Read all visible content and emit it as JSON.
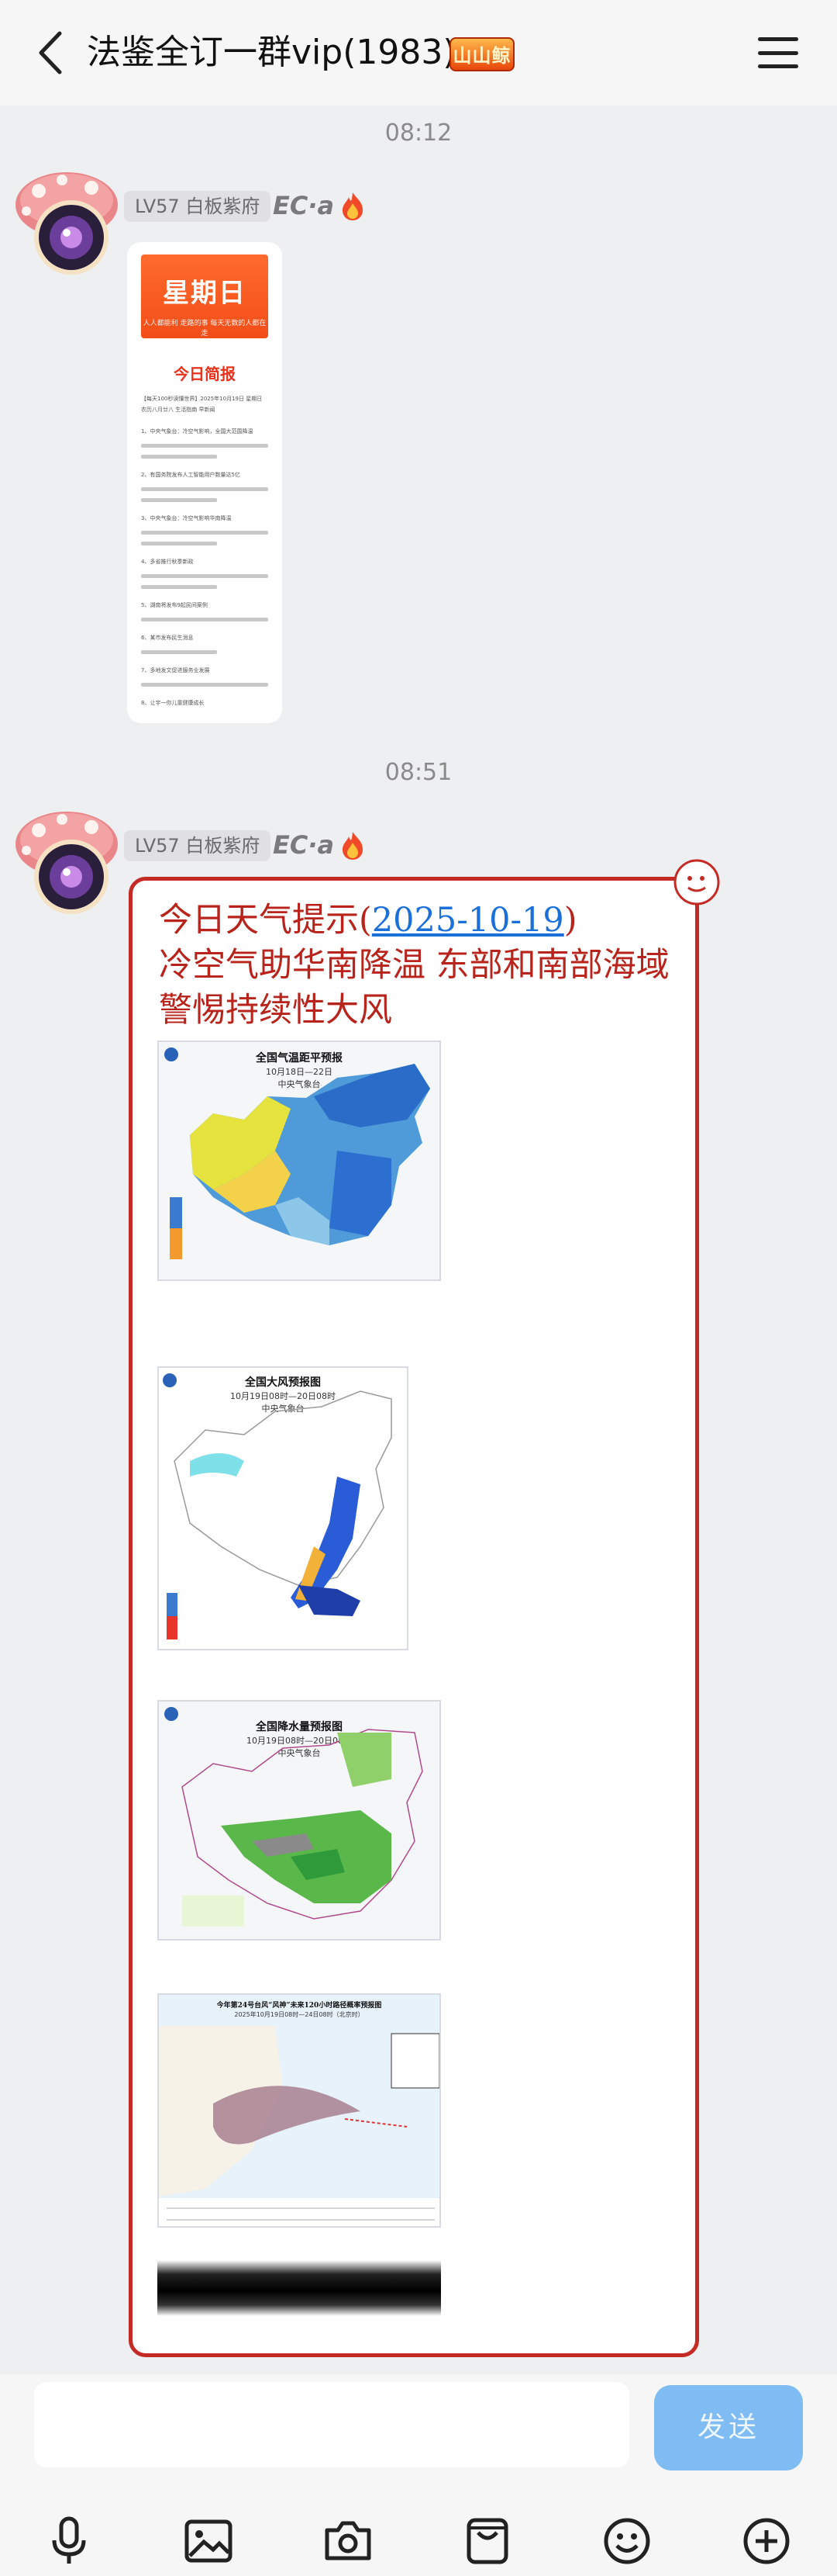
{
  "header": {
    "title": "法鉴全订一群vip(1983)",
    "badge": "山山鲸"
  },
  "messages": [
    {
      "timestamp": "08:12",
      "level": "LV57 白板紫府",
      "sender": "EC·a",
      "image": {
        "banner_title": "星期日",
        "banner_sub": "人人都能利 走路的事 每天无数的人都在走",
        "section": "今日简报",
        "text_lines": [
          "【每天100秒读懂世界】2025年10月19日 星期日 农历八月廿八 生活指南 早新闻",
          "1、中央气象台：冷空气影响，全国大范围降温",
          "2、有国务院发布人工智能用户数量达5亿",
          "3、中央气象台：冷空气影响华南降温",
          "4、多省推行秋季新政",
          "5、湖南将发布9起民间案例",
          "6、某市发布民生消息",
          "7、多地发文促进服务业发展",
          "8、让宇一你儿童健康成长"
        ]
      }
    },
    {
      "timestamp": "08:51",
      "level": "LV57 白板紫府",
      "sender": "EC·a",
      "weather": {
        "title_prefix": "今日天气提示(",
        "title_date": "2025-10-19",
        "title_suffix": ")",
        "headline": "冷空气助华南降温 东部和南部海域警惕持续性大风",
        "maps": [
          {
            "title": "全国气温距平预报",
            "sub": "10月18日—22日",
            "issuer": "中央气象台"
          },
          {
            "title": "全国大风预报图",
            "sub": "10月19日08时—20日08时",
            "issuer": "中央气象台"
          },
          {
            "title": "全国降水量预报图",
            "sub": "10月19日08时—20日08时",
            "issuer": "中央气象台"
          },
          {
            "title": "今年第24号台风“风神”未来120小时路径概率预报图",
            "sub": "2025年10月19日08时—24日08时（北京时）",
            "issuer": ""
          }
        ]
      }
    }
  ],
  "input": {
    "send_label": "发送"
  },
  "toolbar": [
    "microphone-icon",
    "image-icon",
    "camera-icon",
    "sticker-pack-icon",
    "emoji-icon",
    "plus-icon"
  ],
  "colors": {
    "accent_red": "#c42b25",
    "send_button": "#7fbcf3",
    "link": "#1a6fd8"
  }
}
